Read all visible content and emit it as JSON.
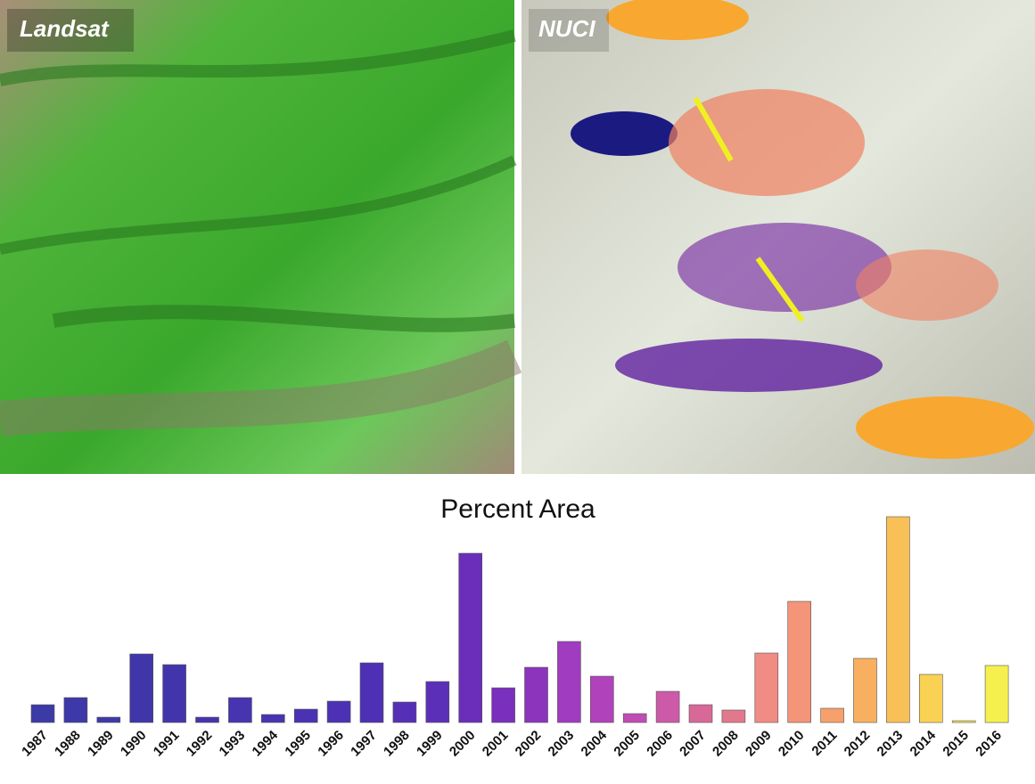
{
  "panels": {
    "left_label": "Landsat",
    "right_label": "NUCI"
  },
  "chart_data": {
    "type": "bar",
    "title": "Percent Area",
    "categories": [
      "1987",
      "1988",
      "1989",
      "1990",
      "1991",
      "1992",
      "1993",
      "1994",
      "1995",
      "1996",
      "1997",
      "1998",
      "1999",
      "2000",
      "2001",
      "2002",
      "2003",
      "2004",
      "2005",
      "2006",
      "2007",
      "2008",
      "2009",
      "2010",
      "2011",
      "2012",
      "2013",
      "2014",
      "2015",
      "2016"
    ],
    "values": [
      2.0,
      2.8,
      0.6,
      7.7,
      6.5,
      0.6,
      2.8,
      0.9,
      1.5,
      2.4,
      6.7,
      2.3,
      4.6,
      19.0,
      3.9,
      6.2,
      9.1,
      5.2,
      1.0,
      3.5,
      2.0,
      1.4,
      7.8,
      13.6,
      1.6,
      7.2,
      23.1,
      5.4,
      0.2,
      6.4
    ],
    "colors": [
      "#3c3aa6",
      "#3d39a8",
      "#3e38aa",
      "#4036aa",
      "#4235ac",
      "#4434ae",
      "#4634b0",
      "#4833b0",
      "#4a32b2",
      "#4c31b4",
      "#4e30b4",
      "#5530b6",
      "#5c2fb8",
      "#6a2eba",
      "#7a30bc",
      "#8c34bc",
      "#a03cc0",
      "#b042bc",
      "#c04cb4",
      "#cc5aa8",
      "#d86898",
      "#e2788c",
      "#f08c84",
      "#f49478",
      "#f6a06c",
      "#f8b060",
      "#f9c058",
      "#f9d254",
      "#f8e452",
      "#f6f04e"
    ],
    "ylim": [
      0,
      23.1
    ]
  }
}
